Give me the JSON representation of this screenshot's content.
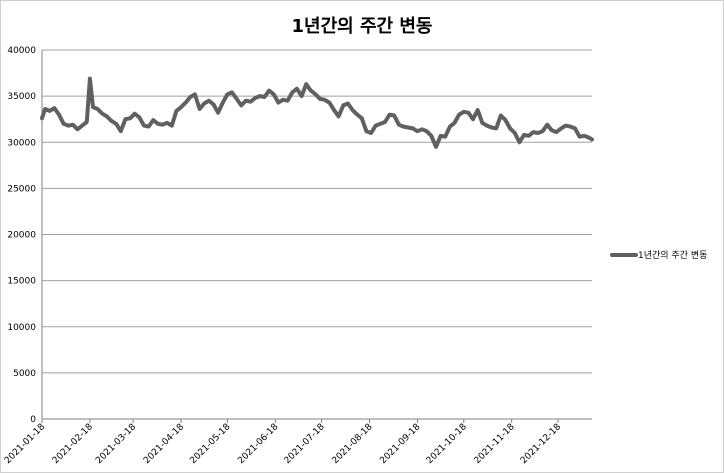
{
  "chart_data": {
    "type": "line",
    "title": "1년간의 주간 변동",
    "xlabel": "",
    "ylabel": "",
    "ylim": [
      0,
      40000
    ],
    "y_ticks": [
      "0",
      "5000",
      "10000",
      "15000",
      "20000",
      "25000",
      "30000",
      "35000",
      "40000"
    ],
    "x_tick_labels": [
      "2021-01-18",
      "2021-02-18",
      "2021-03-18",
      "2021-04-18",
      "2021-05-18",
      "2021-06-18",
      "2021-07-18",
      "2021-08-18",
      "2021-09-18",
      "2021-10-18",
      "2021-11-18",
      "2021-12-18"
    ],
    "grid": true,
    "legend_position": "right",
    "series": [
      {
        "name": "1년간의 주간 변동",
        "color": "#606060",
        "points": [
          [
            "2021-01-18",
            32600
          ],
          [
            "2021-01-20",
            33600
          ],
          [
            "2021-01-23",
            33400
          ],
          [
            "2021-01-26",
            33700
          ],
          [
            "2021-01-29",
            33000
          ],
          [
            "2021-02-01",
            32000
          ],
          [
            "2021-02-04",
            31800
          ],
          [
            "2021-02-07",
            31900
          ],
          [
            "2021-02-10",
            31400
          ],
          [
            "2021-02-13",
            31800
          ],
          [
            "2021-02-16",
            32200
          ],
          [
            "2021-02-18",
            36900
          ],
          [
            "2021-02-20",
            33800
          ],
          [
            "2021-02-23",
            33600
          ],
          [
            "2021-02-26",
            33100
          ],
          [
            "2021-03-01",
            32800
          ],
          [
            "2021-03-04",
            32300
          ],
          [
            "2021-03-07",
            32000
          ],
          [
            "2021-03-10",
            31200
          ],
          [
            "2021-03-13",
            32500
          ],
          [
            "2021-03-16",
            32600
          ],
          [
            "2021-03-19",
            33100
          ],
          [
            "2021-03-22",
            32700
          ],
          [
            "2021-03-25",
            31800
          ],
          [
            "2021-03-28",
            31700
          ],
          [
            "2021-03-31",
            32400
          ],
          [
            "2021-04-03",
            32000
          ],
          [
            "2021-04-06",
            31900
          ],
          [
            "2021-04-09",
            32100
          ],
          [
            "2021-04-12",
            31800
          ],
          [
            "2021-04-15",
            33400
          ],
          [
            "2021-04-18",
            33800
          ],
          [
            "2021-04-21",
            34300
          ],
          [
            "2021-04-24",
            34900
          ],
          [
            "2021-04-27",
            35200
          ],
          [
            "2021-04-30",
            33600
          ],
          [
            "2021-05-03",
            34200
          ],
          [
            "2021-05-06",
            34500
          ],
          [
            "2021-05-09",
            34100
          ],
          [
            "2021-05-12",
            33200
          ],
          [
            "2021-05-15",
            34300
          ],
          [
            "2021-05-18",
            35200
          ],
          [
            "2021-05-21",
            35400
          ],
          [
            "2021-05-24",
            34700
          ],
          [
            "2021-05-27",
            34000
          ],
          [
            "2021-05-30",
            34500
          ],
          [
            "2021-06-02",
            34400
          ],
          [
            "2021-06-05",
            34800
          ],
          [
            "2021-06-08",
            35000
          ],
          [
            "2021-06-11",
            34900
          ],
          [
            "2021-06-14",
            35600
          ],
          [
            "2021-06-17",
            35200
          ],
          [
            "2021-06-20",
            34300
          ],
          [
            "2021-06-23",
            34600
          ],
          [
            "2021-06-26",
            34500
          ],
          [
            "2021-06-29",
            35400
          ],
          [
            "2021-07-02",
            35800
          ],
          [
            "2021-07-05",
            35000
          ],
          [
            "2021-07-08",
            36300
          ],
          [
            "2021-07-11",
            35600
          ],
          [
            "2021-07-14",
            35200
          ],
          [
            "2021-07-17",
            34700
          ],
          [
            "2021-07-20",
            34600
          ],
          [
            "2021-07-23",
            34300
          ],
          [
            "2021-07-26",
            33500
          ],
          [
            "2021-07-29",
            32800
          ],
          [
            "2021-08-01",
            34000
          ],
          [
            "2021-08-04",
            34200
          ],
          [
            "2021-08-07",
            33500
          ],
          [
            "2021-08-10",
            33000
          ],
          [
            "2021-08-13",
            32600
          ],
          [
            "2021-08-16",
            31200
          ],
          [
            "2021-08-19",
            31000
          ],
          [
            "2021-08-22",
            31800
          ],
          [
            "2021-08-25",
            32000
          ],
          [
            "2021-08-28",
            32200
          ],
          [
            "2021-08-31",
            33000
          ],
          [
            "2021-09-03",
            32900
          ],
          [
            "2021-09-06",
            31900
          ],
          [
            "2021-09-09",
            31700
          ],
          [
            "2021-09-12",
            31600
          ],
          [
            "2021-09-15",
            31500
          ],
          [
            "2021-09-18",
            31200
          ],
          [
            "2021-09-21",
            31400
          ],
          [
            "2021-09-24",
            31200
          ],
          [
            "2021-09-27",
            30700
          ],
          [
            "2021-09-30",
            29500
          ],
          [
            "2021-10-03",
            30700
          ],
          [
            "2021-10-06",
            30600
          ],
          [
            "2021-10-09",
            31700
          ],
          [
            "2021-10-12",
            32100
          ],
          [
            "2021-10-15",
            33000
          ],
          [
            "2021-10-18",
            33300
          ],
          [
            "2021-10-21",
            33200
          ],
          [
            "2021-10-24",
            32500
          ],
          [
            "2021-10-27",
            33500
          ],
          [
            "2021-10-30",
            32100
          ],
          [
            "2021-11-02",
            31800
          ],
          [
            "2021-11-05",
            31600
          ],
          [
            "2021-11-08",
            31500
          ],
          [
            "2021-11-11",
            32900
          ],
          [
            "2021-11-14",
            32400
          ],
          [
            "2021-11-17",
            31500
          ],
          [
            "2021-11-20",
            31000
          ],
          [
            "2021-11-23",
            30000
          ],
          [
            "2021-11-26",
            30800
          ],
          [
            "2021-11-29",
            30700
          ],
          [
            "2021-12-02",
            31100
          ],
          [
            "2021-12-05",
            31000
          ],
          [
            "2021-12-08",
            31200
          ],
          [
            "2021-12-11",
            31900
          ],
          [
            "2021-12-14",
            31300
          ],
          [
            "2021-12-17",
            31100
          ],
          [
            "2021-12-20",
            31500
          ],
          [
            "2021-12-23",
            31800
          ],
          [
            "2021-12-26",
            31700
          ],
          [
            "2021-12-29",
            31500
          ],
          [
            "2022-01-01",
            30600
          ],
          [
            "2022-01-04",
            30700
          ],
          [
            "2022-01-07",
            30500
          ],
          [
            "2022-01-09",
            30300
          ]
        ]
      }
    ]
  }
}
